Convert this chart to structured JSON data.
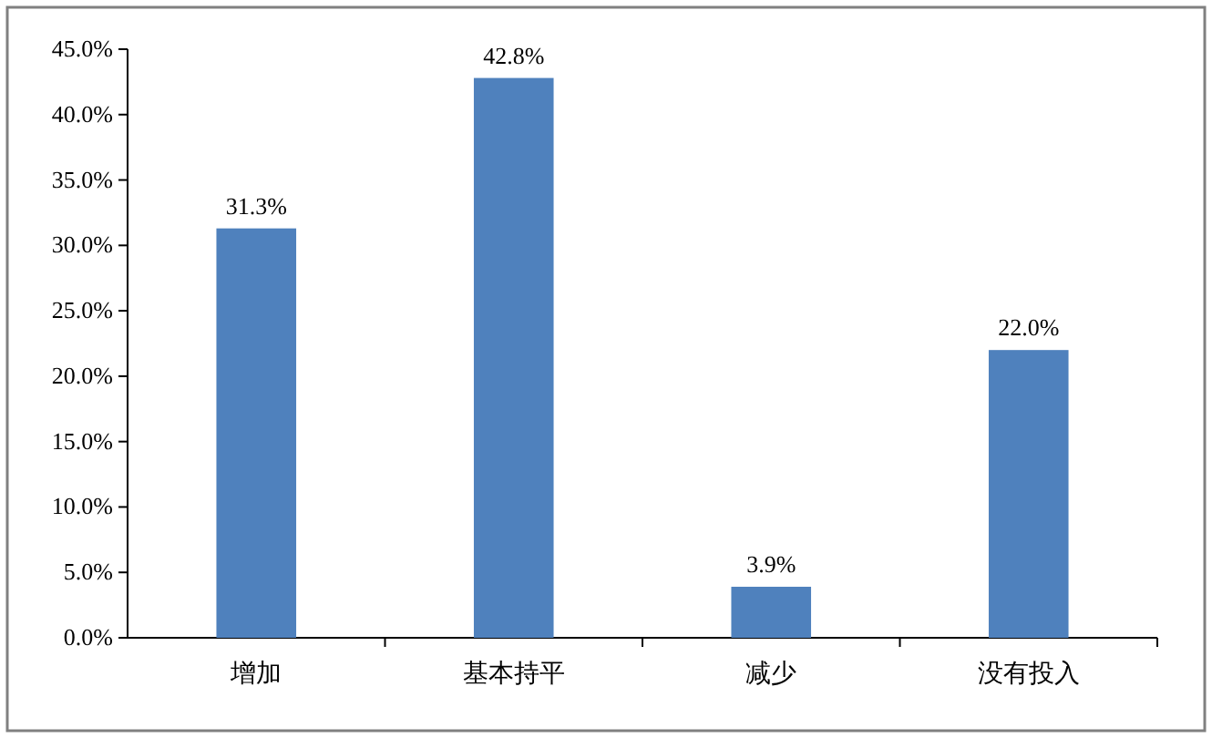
{
  "chart_data": {
    "type": "bar",
    "categories": [
      "增加",
      "基本持平",
      "减少",
      "没有投入"
    ],
    "values": [
      31.3,
      42.8,
      3.9,
      22.0
    ],
    "value_labels": [
      "31.3%",
      "42.8%",
      "3.9%",
      "22.0%"
    ],
    "color": "#4f81bd",
    "ylim": [
      0,
      45
    ],
    "yticks": [
      {
        "value": 0,
        "label": "0.0%"
      },
      {
        "value": 5,
        "label": "5.0%"
      },
      {
        "value": 10,
        "label": "10.0%"
      },
      {
        "value": 15,
        "label": "15.0%"
      },
      {
        "value": 20,
        "label": "20.0%"
      },
      {
        "value": 25,
        "label": "25.0%"
      },
      {
        "value": 30,
        "label": "30.0%"
      },
      {
        "value": 35,
        "label": "35.0%"
      },
      {
        "value": 40,
        "label": "40.0%"
      },
      {
        "value": 45,
        "label": "45.0%"
      }
    ],
    "grid": false
  }
}
